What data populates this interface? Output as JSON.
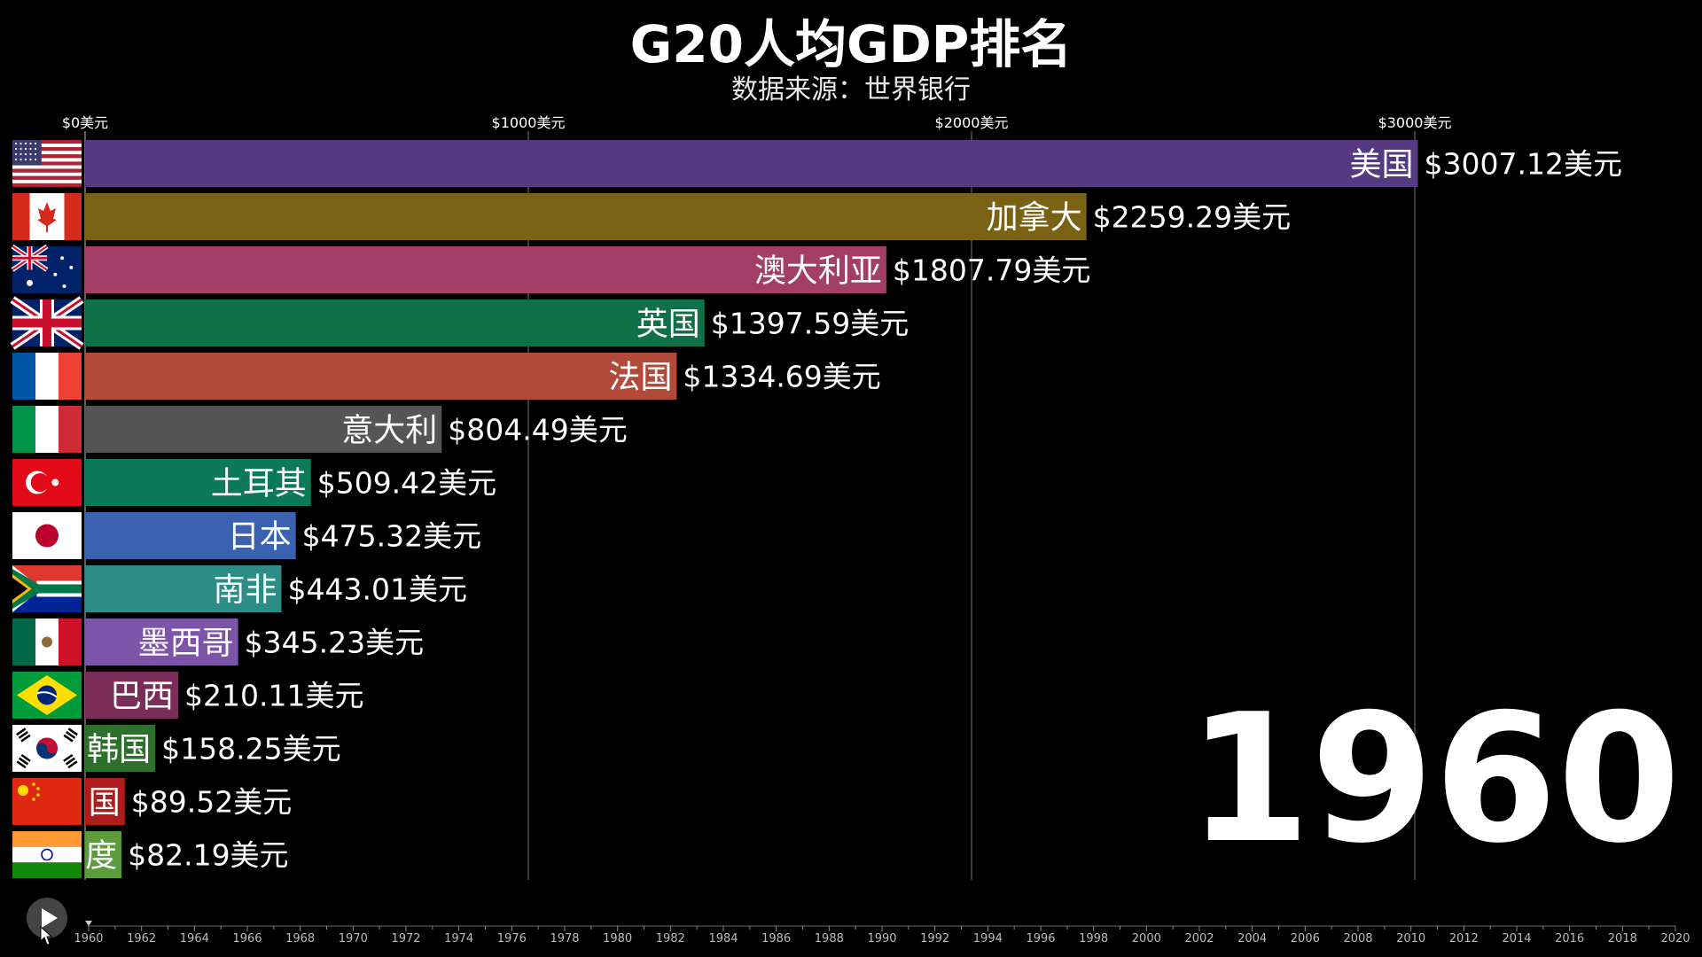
{
  "header": {
    "title": "G20人均GDP排名",
    "subtitle": "数据来源：世界银行"
  },
  "year_display": "1960",
  "colors": {
    "background": "#000000",
    "grid": "#888888",
    "text": "#ffffff"
  },
  "chart_data": {
    "type": "bar",
    "orientation": "horizontal",
    "title": "G20人均GDP排名",
    "subtitle": "数据来源：世界银行",
    "xlim": [
      0,
      3000
    ],
    "xticks": [
      0,
      1000,
      2000,
      3000
    ],
    "xtick_labels": [
      "$0美元",
      "$1000美元",
      "$2000美元",
      "$3000美元"
    ],
    "value_prefix": "$",
    "value_suffix": "美元",
    "grid": true,
    "bars": [
      {
        "name": "美国",
        "label": "美国",
        "value": 3007.12,
        "value_label": "$3007.12美元",
        "color": "#553a82",
        "flag": "usa"
      },
      {
        "name": "加拿大",
        "label": "加拿大",
        "value": 2259.29,
        "value_label": "$2259.29美元",
        "color": "#7a6214",
        "flag": "canada"
      },
      {
        "name": "澳大利亚",
        "label": "澳大利亚",
        "value": 1807.79,
        "value_label": "$1807.79美元",
        "color": "#a33f66",
        "flag": "australia"
      },
      {
        "name": "英国",
        "label": "英国",
        "value": 1397.59,
        "value_label": "$1397.59美元",
        "color": "#10704a",
        "flag": "uk"
      },
      {
        "name": "法国",
        "label": "法国",
        "value": 1334.69,
        "value_label": "$1334.69美元",
        "color": "#b24a3a",
        "flag": "france"
      },
      {
        "name": "意大利",
        "label": "意大利",
        "value": 804.49,
        "value_label": "$804.49美元",
        "color": "#555555",
        "flag": "italy"
      },
      {
        "name": "土耳其",
        "label": "土耳其",
        "value": 509.42,
        "value_label": "$509.42美元",
        "color": "#0c7a58",
        "flag": "turkey"
      },
      {
        "name": "日本",
        "label": "日本",
        "value": 475.32,
        "value_label": "$475.32美元",
        "color": "#3b62b0",
        "flag": "japan"
      },
      {
        "name": "南非",
        "label": "南非",
        "value": 443.01,
        "value_label": "$443.01美元",
        "color": "#2e8c86",
        "flag": "southafrica"
      },
      {
        "name": "墨西哥",
        "label": "墨西哥",
        "value": 345.23,
        "value_label": "$345.23美元",
        "color": "#7c55a8",
        "flag": "mexico"
      },
      {
        "name": "巴西",
        "label": "巴西",
        "value": 210.11,
        "value_label": "$210.11美元",
        "color": "#7a2d56",
        "flag": "brazil"
      },
      {
        "name": "韩国",
        "label": "韩国",
        "value": 158.25,
        "value_label": "$158.25美元",
        "color": "#2e6f2c",
        "flag": "korea"
      },
      {
        "name": "中国",
        "label": "国",
        "value": 89.52,
        "value_label": "$89.52美元",
        "color": "#b01c1c",
        "flag": "china"
      },
      {
        "name": "印度",
        "label": "度",
        "value": 82.19,
        "value_label": "$82.19美元",
        "color": "#5d9c3c",
        "flag": "india"
      }
    ]
  },
  "timeline": {
    "start": 1960,
    "end": 2020,
    "current": 1960,
    "tick_labels": [
      "1960",
      "1962",
      "1964",
      "1966",
      "1968",
      "1970",
      "1972",
      "1974",
      "1976",
      "1978",
      "1980",
      "1982",
      "1984",
      "1986",
      "1988",
      "1990",
      "1992",
      "1994",
      "1996",
      "1998",
      "2000",
      "2002",
      "2004",
      "2006",
      "2008",
      "2010",
      "2012",
      "2014",
      "2016",
      "2018",
      "2020"
    ]
  },
  "controls": {
    "play_icon": "play-icon"
  }
}
